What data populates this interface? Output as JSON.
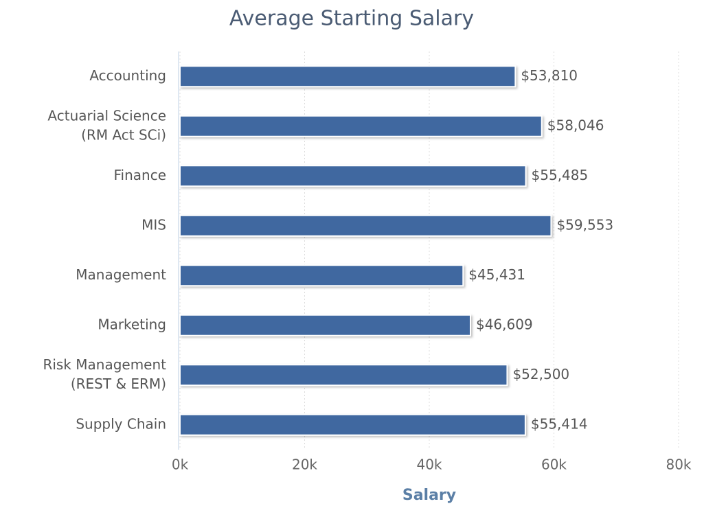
{
  "chart_data": {
    "type": "bar",
    "orientation": "horizontal",
    "title": "Average Starting Salary",
    "x_label": "Salary",
    "categories": [
      [
        "Accounting"
      ],
      [
        "Actuarial Science",
        "(RM Act SCi)"
      ],
      [
        "Finance"
      ],
      [
        "MIS"
      ],
      [
        "Management"
      ],
      [
        "Marketing"
      ],
      [
        "Risk Management",
        "(REST & ERM)"
      ],
      [
        "Supply Chain"
      ]
    ],
    "values": [
      53810,
      58046,
      55485,
      59553,
      45431,
      46609,
      52500,
      55414
    ],
    "value_labels": [
      "$53,810",
      "$58,046",
      "$55,485",
      "$59,553",
      "$45,431",
      "$46,609",
      "$52,500",
      "$55,414"
    ],
    "color": "#3f68a0",
    "xlim": [
      0,
      80000
    ],
    "xticks": [
      {
        "value": 0,
        "label": "0k"
      },
      {
        "value": 20000,
        "label": "20k"
      },
      {
        "value": 40000,
        "label": "40k"
      },
      {
        "value": 60000,
        "label": "60k"
      },
      {
        "value": 80000,
        "label": "80k"
      }
    ],
    "grid": true
  }
}
